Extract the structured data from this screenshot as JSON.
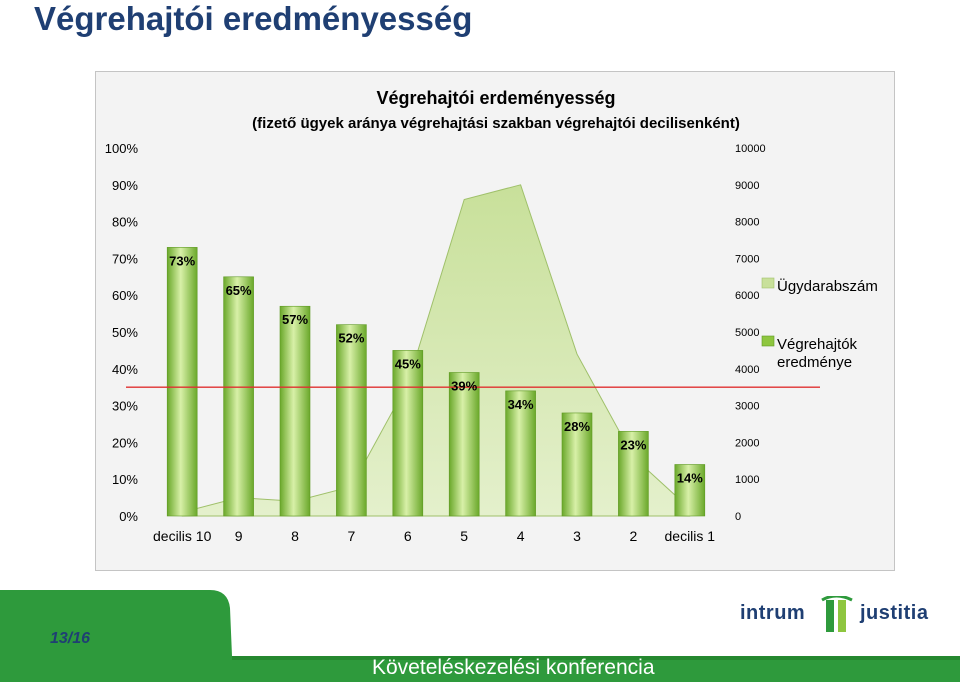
{
  "slide": {
    "title": "Végrehajtói eredményesség",
    "page": "13/16",
    "conference": "Követeléskezelési konferencia",
    "logo": {
      "left_word": "intrum",
      "right_word": "justitia"
    }
  },
  "colors": {
    "title": "#1f3f73",
    "bar": "#8ec63f",
    "area": "#c8e09a",
    "reference_line": "#e03030",
    "footer_green": "#2e9a3c"
  },
  "chart_data": {
    "type": "bar",
    "title": "Végrehajtói erdeményesség",
    "subtitle": "(fizető ügyek aránya végrehajtási szakban végrehajtói decilisenként)",
    "categories": [
      "decilis 10",
      "9",
      "8",
      "7",
      "6",
      "5",
      "4",
      "3",
      "2",
      "decilis 1"
    ],
    "series": [
      {
        "name": "Végrehajtók eredménye",
        "kind": "bar",
        "axis": "left",
        "values": [
          73,
          65,
          57,
          52,
          45,
          39,
          34,
          28,
          23,
          14
        ],
        "labels": [
          "73%",
          "65%",
          "57%",
          "52%",
          "45%",
          "39%",
          "34%",
          "28%",
          "23%",
          "14%"
        ]
      },
      {
        "name": "Ügydarabszám",
        "kind": "area",
        "axis": "right",
        "values": [
          100,
          500,
          400,
          800,
          3600,
          8600,
          9000,
          4400,
          1600,
          200
        ]
      }
    ],
    "y_left": {
      "ticks": [
        "0%",
        "10%",
        "20%",
        "30%",
        "40%",
        "50%",
        "60%",
        "70%",
        "80%",
        "90%",
        "100%"
      ],
      "ylim": [
        0,
        100
      ]
    },
    "y_right": {
      "ticks": [
        "0",
        "1000",
        "2000",
        "3000",
        "4000",
        "5000",
        "6000",
        "7000",
        "8000",
        "9000",
        "10000"
      ],
      "ylim": [
        0,
        10000
      ]
    },
    "reference_line": {
      "value": 35
    },
    "legend": [
      "Ügydarabszám",
      "Végrehajtók eredménye"
    ],
    "legend_position": "right"
  }
}
